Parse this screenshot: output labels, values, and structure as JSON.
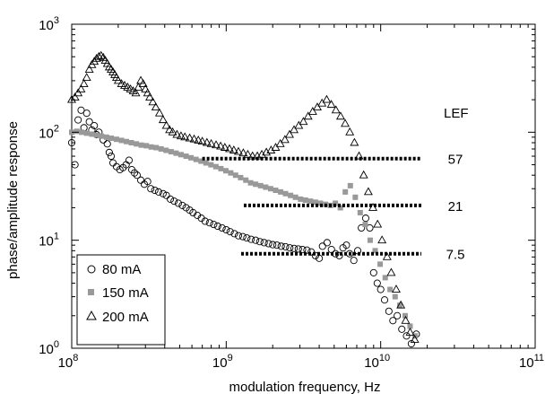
{
  "chart_data": {
    "type": "scatter",
    "title": "",
    "xlabel": "modulation frequency, Hz",
    "ylabel": "phase/amplitude response",
    "x_scale": "log",
    "y_scale": "log",
    "xlim": [
      100000000,
      100000000000
    ],
    "ylim": [
      1,
      1000
    ],
    "x_ticks": [
      {
        "value": 100000000,
        "base": "10",
        "exp": "8"
      },
      {
        "value": 1000000000,
        "base": "10",
        "exp": "9"
      },
      {
        "value": 10000000000,
        "base": "10",
        "exp": "10"
      },
      {
        "value": 100000000000,
        "base": "10",
        "exp": "11"
      }
    ],
    "y_ticks": [
      {
        "value": 1,
        "base": "10",
        "exp": "0"
      },
      {
        "value": 10,
        "base": "10",
        "exp": "1"
      },
      {
        "value": 100,
        "base": "10",
        "exp": "2"
      },
      {
        "value": 1000,
        "base": "10",
        "exp": "3"
      }
    ],
    "grid": false,
    "legend_position": "bottom-left",
    "series": [
      {
        "name": "80 mA",
        "marker": "open-circle",
        "color": "#000000",
        "points": [
          [
            100000000,
            80
          ],
          [
            105000000,
            50
          ],
          [
            110000000,
            130
          ],
          [
            115000000,
            160
          ],
          [
            120000000,
            110
          ],
          [
            125000000,
            150
          ],
          [
            130000000,
            125
          ],
          [
            135000000,
            105
          ],
          [
            140000000,
            115
          ],
          [
            145000000,
            95
          ],
          [
            150000000,
            100
          ],
          [
            160000000,
            85
          ],
          [
            170000000,
            78
          ],
          [
            175000000,
            65
          ],
          [
            180000000,
            60
          ],
          [
            185000000,
            52
          ],
          [
            195000000,
            48
          ],
          [
            205000000,
            45
          ],
          [
            215000000,
            47
          ],
          [
            225000000,
            50
          ],
          [
            235000000,
            55
          ],
          [
            245000000,
            45
          ],
          [
            255000000,
            42
          ],
          [
            265000000,
            40
          ],
          [
            280000000,
            36
          ],
          [
            295000000,
            33
          ],
          [
            310000000,
            35
          ],
          [
            325000000,
            30
          ],
          [
            345000000,
            29
          ],
          [
            365000000,
            28
          ],
          [
            390000000,
            27
          ],
          [
            410000000,
            26
          ],
          [
            435000000,
            24
          ],
          [
            460000000,
            23
          ],
          [
            490000000,
            22
          ],
          [
            520000000,
            21
          ],
          [
            550000000,
            20
          ],
          [
            580000000,
            19
          ],
          [
            610000000,
            18
          ],
          [
            650000000,
            17
          ],
          [
            690000000,
            16
          ],
          [
            730000000,
            15
          ],
          [
            780000000,
            14.5
          ],
          [
            830000000,
            14
          ],
          [
            880000000,
            13.5
          ],
          [
            940000000,
            13
          ],
          [
            1000000000,
            12.5
          ],
          [
            1060000000,
            12
          ],
          [
            1130000000,
            11.5
          ],
          [
            1200000000,
            11
          ],
          [
            1280000000,
            10.8
          ],
          [
            1360000000,
            10.5
          ],
          [
            1450000000,
            10.2
          ],
          [
            1550000000,
            10
          ],
          [
            1650000000,
            9.7
          ],
          [
            1760000000,
            9.5
          ],
          [
            1880000000,
            9.3
          ],
          [
            2000000000,
            9.1
          ],
          [
            2130000000,
            9
          ],
          [
            2270000000,
            8.8
          ],
          [
            2420000000,
            8.7
          ],
          [
            2580000000,
            8.5
          ],
          [
            2750000000,
            8.4
          ],
          [
            2930000000,
            8.3
          ],
          [
            3120000000,
            8.2
          ],
          [
            3330000000,
            8.1
          ],
          [
            3550000000,
            7.8
          ],
          [
            3780000000,
            7.2
          ],
          [
            4000000000,
            6.8
          ],
          [
            4200000000,
            8.8
          ],
          [
            4500000000,
            9.5
          ],
          [
            4800000000,
            8.2
          ],
          [
            5100000000,
            7.5
          ],
          [
            5400000000,
            7.2
          ],
          [
            5700000000,
            8.5
          ],
          [
            6000000000,
            9
          ],
          [
            6300000000,
            7.5
          ],
          [
            6700000000,
            6.5
          ],
          [
            7100000000,
            8
          ],
          [
            7500000000,
            13
          ],
          [
            8000000000,
            16
          ],
          [
            8500000000,
            13
          ],
          [
            9000000000,
            5
          ],
          [
            9500000000,
            4
          ],
          [
            10000000000,
            3.5
          ],
          [
            10600000000,
            2.8
          ],
          [
            11300000000,
            2.2
          ],
          [
            12000000000,
            1.8
          ],
          [
            12800000000,
            2
          ],
          [
            13700000000,
            1.5
          ],
          [
            14700000000,
            1.3
          ],
          [
            15800000000,
            1.1
          ],
          [
            17000000000,
            1.35
          ]
        ]
      },
      {
        "name": "150 mA",
        "marker": "filled-square",
        "color": "#999999",
        "points": [
          [
            100000000,
            100
          ],
          [
            108000000,
            102
          ],
          [
            116000000,
            100
          ],
          [
            125000000,
            98
          ],
          [
            135000000,
            96
          ],
          [
            145000000,
            94
          ],
          [
            156000000,
            92
          ],
          [
            168000000,
            90
          ],
          [
            180000000,
            88
          ],
          [
            195000000,
            86
          ],
          [
            210000000,
            84
          ],
          [
            226000000,
            82
          ],
          [
            243000000,
            80
          ],
          [
            262000000,
            78
          ],
          [
            282000000,
            76
          ],
          [
            304000000,
            75
          ],
          [
            327000000,
            73
          ],
          [
            352000000,
            72
          ],
          [
            379000000,
            70
          ],
          [
            408000000,
            68
          ],
          [
            440000000,
            66
          ],
          [
            474000000,
            64
          ],
          [
            510000000,
            62
          ],
          [
            550000000,
            60
          ],
          [
            592000000,
            58
          ],
          [
            638000000,
            56
          ],
          [
            687000000,
            54
          ],
          [
            740000000,
            52
          ],
          [
            797000000,
            50
          ],
          [
            858000000,
            48
          ],
          [
            924000000,
            46
          ],
          [
            995000000,
            44
          ],
          [
            1070000000,
            42
          ],
          [
            1150000000,
            40
          ],
          [
            1240000000,
            38
          ],
          [
            1340000000,
            36
          ],
          [
            1440000000,
            34
          ],
          [
            1550000000,
            33
          ],
          [
            1670000000,
            32
          ],
          [
            1800000000,
            31
          ],
          [
            1940000000,
            30
          ],
          [
            2090000000,
            29
          ],
          [
            2250000000,
            28
          ],
          [
            2420000000,
            27
          ],
          [
            2610000000,
            26
          ],
          [
            2810000000,
            25
          ],
          [
            3030000000,
            24
          ],
          [
            3260000000,
            23.5
          ],
          [
            3510000000,
            23
          ],
          [
            3780000000,
            22.5
          ],
          [
            4070000000,
            22
          ],
          [
            4390000000,
            21.5
          ],
          [
            4730000000,
            21
          ],
          [
            5090000000,
            22
          ],
          [
            5480000000,
            20
          ],
          [
            5900000000,
            28
          ],
          [
            6360000000,
            32
          ],
          [
            6850000000,
            25
          ],
          [
            7370000000,
            18
          ],
          [
            7940000000,
            14
          ],
          [
            8550000000,
            10
          ],
          [
            9210000000,
            8
          ],
          [
            9920000000,
            6
          ],
          [
            10700000000,
            4.5
          ],
          [
            11500000000,
            3.5
          ],
          [
            12400000000,
            3
          ],
          [
            13300000000,
            2.5
          ],
          [
            14400000000,
            2
          ],
          [
            15500000000,
            1.6
          ],
          [
            16700000000,
            1.3
          ]
        ]
      },
      {
        "name": "200 mA",
        "marker": "open-triangle",
        "color": "#000000",
        "points": [
          [
            100000000,
            200
          ],
          [
            105000000,
            210
          ],
          [
            110000000,
            230
          ],
          [
            115000000,
            250
          ],
          [
            120000000,
            280
          ],
          [
            125000000,
            320
          ],
          [
            130000000,
            380
          ],
          [
            135000000,
            420
          ],
          [
            140000000,
            450
          ],
          [
            145000000,
            480
          ],
          [
            150000000,
            500
          ],
          [
            155000000,
            510
          ],
          [
            160000000,
            490
          ],
          [
            165000000,
            460
          ],
          [
            170000000,
            430
          ],
          [
            175000000,
            400
          ],
          [
            180000000,
            380
          ],
          [
            185000000,
            360
          ],
          [
            190000000,
            340
          ],
          [
            195000000,
            320
          ],
          [
            200000000,
            300
          ],
          [
            210000000,
            280
          ],
          [
            220000000,
            270
          ],
          [
            230000000,
            260
          ],
          [
            240000000,
            250
          ],
          [
            250000000,
            240
          ],
          [
            260000000,
            230
          ],
          [
            270000000,
            260
          ],
          [
            280000000,
            300
          ],
          [
            290000000,
            280
          ],
          [
            300000000,
            250
          ],
          [
            310000000,
            230
          ],
          [
            320000000,
            210
          ],
          [
            335000000,
            190
          ],
          [
            350000000,
            170
          ],
          [
            370000000,
            150
          ],
          [
            390000000,
            130
          ],
          [
            410000000,
            115
          ],
          [
            430000000,
            105
          ],
          [
            450000000,
            100
          ],
          [
            480000000,
            95
          ],
          [
            510000000,
            92
          ],
          [
            540000000,
            90
          ],
          [
            580000000,
            88
          ],
          [
            620000000,
            86
          ],
          [
            660000000,
            84
          ],
          [
            700000000,
            82
          ],
          [
            750000000,
            80
          ],
          [
            800000000,
            78
          ],
          [
            860000000,
            76
          ],
          [
            920000000,
            74
          ],
          [
            980000000,
            72
          ],
          [
            1050000000,
            70
          ],
          [
            1120000000,
            68
          ],
          [
            1200000000,
            66
          ],
          [
            1290000000,
            64
          ],
          [
            1380000000,
            62
          ],
          [
            1480000000,
            60
          ],
          [
            1590000000,
            60
          ],
          [
            1700000000,
            62
          ],
          [
            1820000000,
            65
          ],
          [
            1950000000,
            68
          ],
          [
            2090000000,
            72
          ],
          [
            2240000000,
            78
          ],
          [
            2400000000,
            85
          ],
          [
            2570000000,
            95
          ],
          [
            2750000000,
            105
          ],
          [
            2950000000,
            115
          ],
          [
            3160000000,
            125
          ],
          [
            3390000000,
            140
          ],
          [
            3630000000,
            155
          ],
          [
            3890000000,
            170
          ],
          [
            4170000000,
            185
          ],
          [
            4470000000,
            200
          ],
          [
            4790000000,
            180
          ],
          [
            5130000000,
            160
          ],
          [
            5500000000,
            140
          ],
          [
            5890000000,
            120
          ],
          [
            6310000000,
            100
          ],
          [
            6760000000,
            80
          ],
          [
            7240000000,
            60
          ],
          [
            7760000000,
            40
          ],
          [
            8320000000,
            28
          ],
          [
            8910000000,
            20
          ],
          [
            9550000000,
            14
          ],
          [
            10200000000,
            10
          ],
          [
            11000000000,
            7
          ],
          [
            11700000000,
            5
          ],
          [
            12600000000,
            3.5
          ],
          [
            13500000000,
            2.5
          ],
          [
            14500000000,
            1.8
          ],
          [
            15500000000,
            1.4
          ],
          [
            16600000000,
            1.2
          ]
        ]
      }
    ],
    "reference_lines": [
      {
        "label": "57",
        "y": 57,
        "x_from": 700000000,
        "x_to": 25000000000
      },
      {
        "label": "21",
        "y": 21,
        "x_from": 1300000000,
        "x_to": 25000000000
      },
      {
        "label": "7.5",
        "y": 7.5,
        "x_from": 1250000000,
        "x_to": 25000000000
      }
    ],
    "annotation": "LEF"
  }
}
